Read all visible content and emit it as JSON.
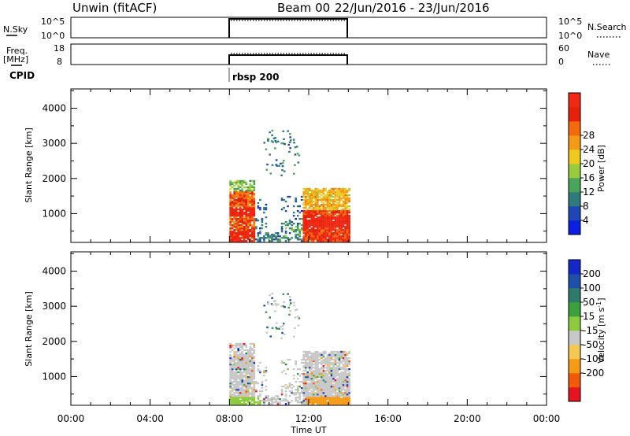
{
  "header": {
    "station": "Unwin (fitACF)",
    "beam": "Beam 00",
    "date_range": "22/Jun/2016 - 23/Jun/2016"
  },
  "strips": {
    "nsky_label": "N.Sky",
    "nsearch_label": "N.Search",
    "nsky_ticks": [
      "10^5",
      "10^0"
    ],
    "freq_label": "Freq.",
    "freq_unit": "[MHz]",
    "freq_ticks": [
      "18",
      "8"
    ],
    "nave_label": "Nave",
    "nave_ticks": [
      "60",
      "0"
    ],
    "cpid_label": "CPID",
    "cpid_value": "rbsp 200"
  },
  "colors": {
    "power": [
      "#0a1ee6",
      "#1e46b4",
      "#2f7a7a",
      "#4aa55a",
      "#98cc3c",
      "#f0c81e",
      "#f59a14",
      "#f56a0a",
      "#e6200a",
      "#f02814"
    ],
    "velocity": [
      "#e6141e",
      "#f05a0a",
      "#f59a14",
      "#f5c850",
      "#c8c8c8",
      "#8ccc3c",
      "#3ca03c",
      "#2f7a6a",
      "#1e50aa",
      "#1428c8"
    ]
  },
  "chart_data": [
    {
      "type": "heatmap",
      "name": "power",
      "ylabel": "Slant Range [km]",
      "ylim": [
        180,
        4550
      ],
      "y_ticks": [
        "1000",
        "2000",
        "3000",
        "4000"
      ],
      "colorbar_label": "Power [dB]",
      "colorbar_ticks": [
        "4",
        "8",
        "12",
        "16",
        "20",
        "24",
        "28"
      ],
      "data_extent": {
        "x": [
          "08:00",
          "14:00"
        ],
        "y": [
          200,
          3350
        ]
      }
    },
    {
      "type": "heatmap",
      "name": "velocity",
      "ylabel": "Slant Range [km]",
      "ylim": [
        180,
        4550
      ],
      "y_ticks": [
        "1000",
        "2000",
        "3000",
        "4000"
      ],
      "colorbar_label": "Velocity [m s",
      "colorbar_label_sup": "-1",
      "colorbar_label_end": "]",
      "colorbar_ticks": [
        "200",
        "100",
        "50",
        "15",
        "-15",
        "-50",
        "-100",
        "-200"
      ],
      "data_extent": {
        "x": [
          "08:00",
          "14:00"
        ],
        "y": [
          200,
          3350
        ]
      }
    }
  ],
  "xaxis": {
    "ticks": [
      "00:00",
      "04:00",
      "08:00",
      "12:00",
      "16:00",
      "20:00",
      "00:00"
    ],
    "label": "Time UT"
  }
}
